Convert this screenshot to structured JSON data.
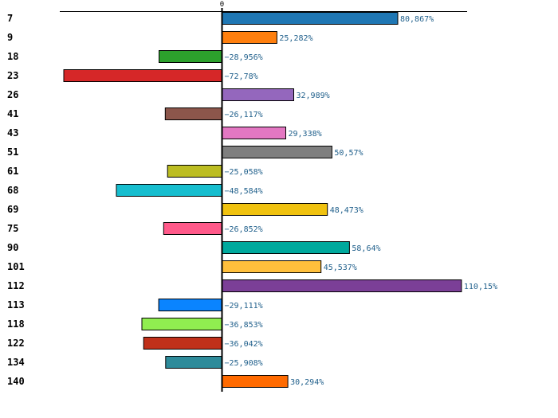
{
  "chart_data": {
    "type": "bar",
    "orientation": "horizontal",
    "title": "",
    "xlabel": "",
    "ylabel": "",
    "zero_tick_label": "0",
    "grid": false,
    "legend": "none",
    "xlim": [
      -80.0,
      124.0
    ],
    "categories": [
      "7",
      "9",
      "18",
      "23",
      "26",
      "41",
      "43",
      "51",
      "61",
      "68",
      "69",
      "75",
      "90",
      "101",
      "112",
      "113",
      "118",
      "122",
      "134",
      "140"
    ],
    "values": [
      80.867,
      25.282,
      -28.956,
      -72.78,
      32.989,
      -26.117,
      29.338,
      50.57,
      -25.058,
      -48.584,
      48.473,
      -26.852,
      58.64,
      45.537,
      110.15,
      -29.111,
      -36.853,
      -36.042,
      -25.908,
      30.294
    ],
    "value_labels": [
      "80,867%",
      "25,282%",
      "−28,956%",
      "−72,78%",
      "32,989%",
      "−26,117%",
      "29,338%",
      "50,57%",
      "−25,058%",
      "−48,584%",
      "48,473%",
      "−26,852%",
      "58,64%",
      "45,537%",
      "110,15%",
      "−29,111%",
      "−36,853%",
      "−36,042%",
      "−25,908%",
      "30,294%"
    ],
    "colors": [
      "#1f77b4",
      "#ff7f0e",
      "#2ca02c",
      "#d62728",
      "#9467bd",
      "#8c564b",
      "#e377c2",
      "#7f7f7f",
      "#bcbd22",
      "#17becf",
      "#f0c20f",
      "#ff5a8a",
      "#00a99d",
      "#ffbf3c",
      "#7b3f97",
      "#0a84ff",
      "#90ee50",
      "#c0301a",
      "#2e8b9a",
      "#ff6a00"
    ]
  }
}
